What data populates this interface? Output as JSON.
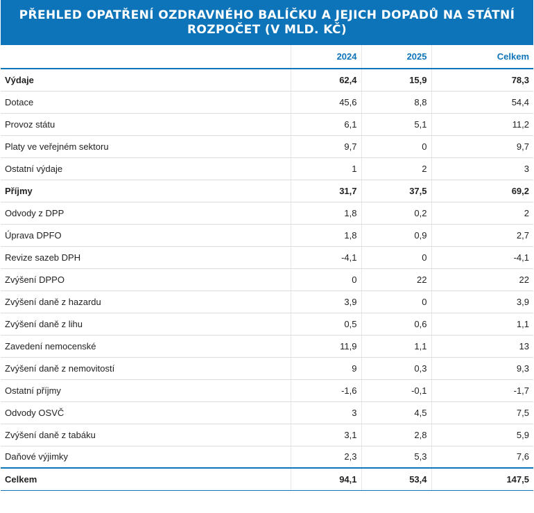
{
  "header": {
    "title": "PŘEHLED OPATŘENÍ OZDRAVNÉHO BALÍČKU A JEJICH DOPADŮ NA STÁTNÍ ROZPOČET (V MLD. KČ)"
  },
  "table": {
    "columns": [
      "",
      "2024",
      "2025",
      "Celkem"
    ]
  },
  "chart_data": {
    "type": "table",
    "title": "PŘEHLED OPATŘENÍ OZDRAVNÉHO BALÍČKU A JEJICH DOPADŮ NA STÁTNÍ ROZPOČET (V MLD. KČ)",
    "columns": [
      "",
      "2024",
      "2025",
      "Celkem"
    ],
    "rows": [
      {
        "label": "Výdaje",
        "bold": true,
        "values": [
          "62,4",
          "15,9",
          "78,3"
        ]
      },
      {
        "label": "Dotace",
        "values": [
          "45,6",
          "8,8",
          "54,4"
        ]
      },
      {
        "label": "Provoz státu",
        "values": [
          "6,1",
          "5,1",
          "11,2"
        ]
      },
      {
        "label": "Platy ve veřejném sektoru",
        "values": [
          "9,7",
          "0",
          "9,7"
        ]
      },
      {
        "label": "Ostatní výdaje",
        "values": [
          "1",
          "2",
          "3"
        ]
      },
      {
        "label": "Příjmy",
        "bold": true,
        "values": [
          "31,7",
          "37,5",
          "69,2"
        ]
      },
      {
        "label": "Odvody z DPP",
        "values": [
          "1,8",
          "0,2",
          "2"
        ]
      },
      {
        "label": "Úprava DPFO",
        "values": [
          "1,8",
          "0,9",
          "2,7"
        ]
      },
      {
        "label": "Revize sazeb DPH",
        "values": [
          "-4,1",
          "0",
          "-4,1"
        ]
      },
      {
        "label": "Zvýšení DPPO",
        "values": [
          "0",
          "22",
          "22"
        ]
      },
      {
        "label": "Zvýšení daně z hazardu",
        "values": [
          "3,9",
          "0",
          "3,9"
        ]
      },
      {
        "label": "Zvýšení daně z lihu",
        "values": [
          "0,5",
          "0,6",
          "1,1"
        ]
      },
      {
        "label": "Zavedení nemocenské",
        "values": [
          "11,9",
          "1,1",
          "13"
        ]
      },
      {
        "label": "Zvýšení daně z nemovitostí",
        "values": [
          "9",
          "0,3",
          "9,3"
        ]
      },
      {
        "label": "Ostatní příjmy",
        "values": [
          "-1,6",
          "-0,1",
          "-1,7"
        ]
      },
      {
        "label": "Odvody OSVČ",
        "values": [
          "3",
          "4,5",
          "7,5"
        ]
      },
      {
        "label": "Zvýšení daně z tabáku",
        "values": [
          "3,1",
          "2,8",
          "5,9"
        ]
      },
      {
        "label": "Daňové výjimky",
        "values": [
          "2,3",
          "5,3",
          "7,6"
        ]
      }
    ],
    "total": {
      "label": "Celkem",
      "values": [
        "94,1",
        "53,4",
        "147,5"
      ]
    }
  }
}
